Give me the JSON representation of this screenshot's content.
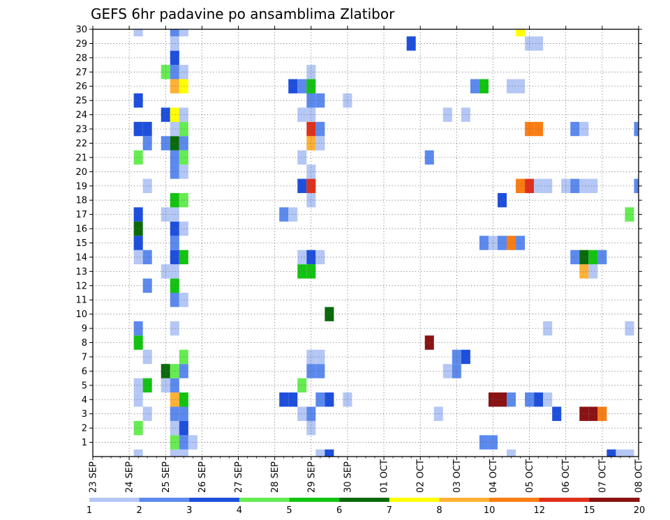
{
  "chart_data": {
    "type": "heatmap",
    "title": "GEFS 6hr padavine po ansamblima Zlatibor",
    "xlabel": "",
    "ylabel": "",
    "x_ticks": [
      "23 SEP",
      "24 SEP",
      "25 SEP",
      "26 SEP",
      "27 SEP",
      "28 SEP",
      "29 SEP",
      "30 SEP",
      "01 OCT",
      "02 OCT",
      "03 OCT",
      "04 OCT",
      "05 OCT",
      "06 OCT",
      "07 OCT",
      "08 OCT"
    ],
    "x_range_days": [
      0,
      15
    ],
    "y_ticks": [
      1,
      2,
      3,
      4,
      5,
      6,
      7,
      8,
      9,
      10,
      11,
      12,
      13,
      14,
      15,
      16,
      17,
      18,
      19,
      20,
      21,
      22,
      23,
      24,
      25,
      26,
      27,
      28,
      29,
      30
    ],
    "y_range": [
      0,
      30
    ],
    "grid": true,
    "colorbar": {
      "placement": "bottom",
      "labels": [
        "1",
        "2",
        "3",
        "4",
        "5",
        "6",
        "7",
        "8",
        "10",
        "12",
        "15",
        "20"
      ],
      "colors": [
        "#b4c7f5",
        "#5b89ed",
        "#1e4fdc",
        "#66ec52",
        "#13c312",
        "#0a6a0a",
        "#ffff00",
        "#ffb136",
        "#fa7d14",
        "#e0301c",
        "#8a1212"
      ]
    },
    "cells": [
      {
        "t": 1.25,
        "m": 0,
        "v": 1
      },
      {
        "t": 2.25,
        "m": 0,
        "v": 1
      },
      {
        "t": 2.5,
        "m": 0,
        "v": 1
      },
      {
        "t": 6.25,
        "m": 0,
        "v": 1
      },
      {
        "t": 6.5,
        "m": 0,
        "v": 3
      },
      {
        "t": 11.5,
        "m": 0,
        "v": 1
      },
      {
        "t": 14.25,
        "m": 0,
        "v": 3
      },
      {
        "t": 14.5,
        "m": 0,
        "v": 1
      },
      {
        "t": 14.75,
        "m": 0,
        "v": 1
      },
      {
        "t": 2.25,
        "m": 1,
        "v": 4
      },
      {
        "t": 2.5,
        "m": 1,
        "v": 2
      },
      {
        "t": 2.75,
        "m": 1,
        "v": 1
      },
      {
        "t": 10.75,
        "m": 1,
        "v": 2
      },
      {
        "t": 11.0,
        "m": 1,
        "v": 2
      },
      {
        "t": 1.25,
        "m": 2,
        "v": 4
      },
      {
        "t": 2.25,
        "m": 2,
        "v": 1
      },
      {
        "t": 2.5,
        "m": 2,
        "v": 3
      },
      {
        "t": 6.0,
        "m": 2,
        "v": 1
      },
      {
        "t": 1.5,
        "m": 3,
        "v": 1
      },
      {
        "t": 2.25,
        "m": 3,
        "v": 2
      },
      {
        "t": 2.5,
        "m": 3,
        "v": 2
      },
      {
        "t": 5.75,
        "m": 3,
        "v": 1
      },
      {
        "t": 6.0,
        "m": 3,
        "v": 2
      },
      {
        "t": 9.5,
        "m": 3,
        "v": 1
      },
      {
        "t": 12.75,
        "m": 3,
        "v": 3
      },
      {
        "t": 13.5,
        "m": 3,
        "v": 11
      },
      {
        "t": 13.75,
        "m": 3,
        "v": 11
      },
      {
        "t": 14.0,
        "m": 3,
        "v": 9
      },
      {
        "t": 1.25,
        "m": 4,
        "v": 1
      },
      {
        "t": 2.25,
        "m": 4,
        "v": 8
      },
      {
        "t": 2.5,
        "m": 4,
        "v": 5
      },
      {
        "t": 5.25,
        "m": 4,
        "v": 3
      },
      {
        "t": 5.5,
        "m": 4,
        "v": 3
      },
      {
        "t": 6.25,
        "m": 4,
        "v": 2
      },
      {
        "t": 6.5,
        "m": 4,
        "v": 3
      },
      {
        "t": 7.0,
        "m": 4,
        "v": 1
      },
      {
        "t": 11.0,
        "m": 4,
        "v": 11
      },
      {
        "t": 11.25,
        "m": 4,
        "v": 11
      },
      {
        "t": 11.5,
        "m": 4,
        "v": 2
      },
      {
        "t": 12.0,
        "m": 4,
        "v": 2
      },
      {
        "t": 12.25,
        "m": 4,
        "v": 3
      },
      {
        "t": 12.5,
        "m": 4,
        "v": 1
      },
      {
        "t": 1.25,
        "m": 5,
        "v": 1
      },
      {
        "t": 1.5,
        "m": 5,
        "v": 5
      },
      {
        "t": 2.0,
        "m": 5,
        "v": 1
      },
      {
        "t": 2.25,
        "m": 5,
        "v": 2
      },
      {
        "t": 5.75,
        "m": 5,
        "v": 4
      },
      {
        "t": 2.0,
        "m": 6,
        "v": 6
      },
      {
        "t": 2.25,
        "m": 6,
        "v": 4
      },
      {
        "t": 2.5,
        "m": 6,
        "v": 2
      },
      {
        "t": 6.0,
        "m": 6,
        "v": 2
      },
      {
        "t": 6.25,
        "m": 6,
        "v": 2
      },
      {
        "t": 9.75,
        "m": 6,
        "v": 1
      },
      {
        "t": 10.0,
        "m": 6,
        "v": 2
      },
      {
        "t": 1.5,
        "m": 7,
        "v": 1
      },
      {
        "t": 2.5,
        "m": 7,
        "v": 4
      },
      {
        "t": 6.0,
        "m": 7,
        "v": 1
      },
      {
        "t": 6.25,
        "m": 7,
        "v": 1
      },
      {
        "t": 10.0,
        "m": 7,
        "v": 2
      },
      {
        "t": 10.25,
        "m": 7,
        "v": 3
      },
      {
        "t": 1.25,
        "m": 8,
        "v": 5
      },
      {
        "t": 9.25,
        "m": 8,
        "v": 11
      },
      {
        "t": 1.25,
        "m": 9,
        "v": 2
      },
      {
        "t": 2.25,
        "m": 9,
        "v": 1
      },
      {
        "t": 12.5,
        "m": 9,
        "v": 1
      },
      {
        "t": 14.75,
        "m": 9,
        "v": 1
      },
      {
        "t": 6.5,
        "m": 10,
        "v": 6
      },
      {
        "t": 2.25,
        "m": 11,
        "v": 2
      },
      {
        "t": 2.5,
        "m": 11,
        "v": 1
      },
      {
        "t": 1.5,
        "m": 12,
        "v": 2
      },
      {
        "t": 2.25,
        "m": 12,
        "v": 5
      },
      {
        "t": 2.0,
        "m": 13,
        "v": 1
      },
      {
        "t": 2.25,
        "m": 13,
        "v": 1
      },
      {
        "t": 5.75,
        "m": 13,
        "v": 5
      },
      {
        "t": 6.0,
        "m": 13,
        "v": 5
      },
      {
        "t": 13.5,
        "m": 13,
        "v": 8
      },
      {
        "t": 13.75,
        "m": 13,
        "v": 1
      },
      {
        "t": 1.25,
        "m": 14,
        "v": 1
      },
      {
        "t": 1.5,
        "m": 14,
        "v": 2
      },
      {
        "t": 2.25,
        "m": 14,
        "v": 3
      },
      {
        "t": 2.5,
        "m": 14,
        "v": 5
      },
      {
        "t": 5.75,
        "m": 14,
        "v": 1
      },
      {
        "t": 6.0,
        "m": 14,
        "v": 3
      },
      {
        "t": 6.25,
        "m": 14,
        "v": 1
      },
      {
        "t": 13.25,
        "m": 14,
        "v": 2
      },
      {
        "t": 13.5,
        "m": 14,
        "v": 6
      },
      {
        "t": 13.75,
        "m": 14,
        "v": 5
      },
      {
        "t": 14.0,
        "m": 14,
        "v": 2
      },
      {
        "t": 1.25,
        "m": 15,
        "v": 3
      },
      {
        "t": 2.25,
        "m": 15,
        "v": 2
      },
      {
        "t": 10.75,
        "m": 15,
        "v": 2
      },
      {
        "t": 11.0,
        "m": 15,
        "v": 1
      },
      {
        "t": 11.25,
        "m": 15,
        "v": 2
      },
      {
        "t": 11.5,
        "m": 15,
        "v": 9
      },
      {
        "t": 11.75,
        "m": 15,
        "v": 2
      },
      {
        "t": 1.25,
        "m": 16,
        "v": 6
      },
      {
        "t": 2.25,
        "m": 16,
        "v": 3
      },
      {
        "t": 2.5,
        "m": 16,
        "v": 1
      },
      {
        "t": 1.25,
        "m": 17,
        "v": 3
      },
      {
        "t": 2.0,
        "m": 17,
        "v": 1
      },
      {
        "t": 2.25,
        "m": 17,
        "v": 1
      },
      {
        "t": 5.25,
        "m": 17,
        "v": 2
      },
      {
        "t": 5.5,
        "m": 17,
        "v": 1
      },
      {
        "t": 14.75,
        "m": 17,
        "v": 4
      },
      {
        "t": 2.25,
        "m": 18,
        "v": 5
      },
      {
        "t": 2.5,
        "m": 18,
        "v": 4
      },
      {
        "t": 6.0,
        "m": 18,
        "v": 1
      },
      {
        "t": 11.25,
        "m": 18,
        "v": 3
      },
      {
        "t": 1.5,
        "m": 19,
        "v": 1
      },
      {
        "t": 5.75,
        "m": 19,
        "v": 3
      },
      {
        "t": 6.0,
        "m": 19,
        "v": 10
      },
      {
        "t": 11.75,
        "m": 19,
        "v": 9
      },
      {
        "t": 12.0,
        "m": 19,
        "v": 10
      },
      {
        "t": 12.25,
        "m": 19,
        "v": 1
      },
      {
        "t": 12.5,
        "m": 19,
        "v": 1
      },
      {
        "t": 13.0,
        "m": 19,
        "v": 1
      },
      {
        "t": 13.25,
        "m": 19,
        "v": 2
      },
      {
        "t": 13.5,
        "m": 19,
        "v": 1
      },
      {
        "t": 13.75,
        "m": 19,
        "v": 1
      },
      {
        "t": 15.0,
        "m": 19,
        "v": 2
      },
      {
        "t": 2.25,
        "m": 20,
        "v": 2
      },
      {
        "t": 2.5,
        "m": 20,
        "v": 1
      },
      {
        "t": 6.0,
        "m": 20,
        "v": 1
      },
      {
        "t": 1.25,
        "m": 21,
        "v": 4
      },
      {
        "t": 2.25,
        "m": 21,
        "v": 2
      },
      {
        "t": 2.5,
        "m": 21,
        "v": 4
      },
      {
        "t": 5.75,
        "m": 21,
        "v": 1
      },
      {
        "t": 9.25,
        "m": 21,
        "v": 2
      },
      {
        "t": 1.5,
        "m": 22,
        "v": 2
      },
      {
        "t": 2.0,
        "m": 22,
        "v": 2
      },
      {
        "t": 2.25,
        "m": 22,
        "v": 6
      },
      {
        "t": 2.5,
        "m": 22,
        "v": 2
      },
      {
        "t": 6.0,
        "m": 22,
        "v": 8
      },
      {
        "t": 6.25,
        "m": 22,
        "v": 1
      },
      {
        "t": 1.25,
        "m": 23,
        "v": 3
      },
      {
        "t": 1.5,
        "m": 23,
        "v": 3
      },
      {
        "t": 2.25,
        "m": 23,
        "v": 1
      },
      {
        "t": 2.5,
        "m": 23,
        "v": 4
      },
      {
        "t": 6.0,
        "m": 23,
        "v": 10
      },
      {
        "t": 6.25,
        "m": 23,
        "v": 2
      },
      {
        "t": 12.0,
        "m": 23,
        "v": 9
      },
      {
        "t": 12.25,
        "m": 23,
        "v": 9
      },
      {
        "t": 13.25,
        "m": 23,
        "v": 2
      },
      {
        "t": 13.5,
        "m": 23,
        "v": 1
      },
      {
        "t": 15.0,
        "m": 23,
        "v": 2
      },
      {
        "t": 2.0,
        "m": 24,
        "v": 3
      },
      {
        "t": 2.25,
        "m": 24,
        "v": 7
      },
      {
        "t": 2.5,
        "m": 24,
        "v": 1
      },
      {
        "t": 5.75,
        "m": 24,
        "v": 1
      },
      {
        "t": 6.0,
        "m": 24,
        "v": 1
      },
      {
        "t": 9.75,
        "m": 24,
        "v": 1
      },
      {
        "t": 10.25,
        "m": 24,
        "v": 1
      },
      {
        "t": 1.25,
        "m": 25,
        "v": 3
      },
      {
        "t": 6.0,
        "m": 25,
        "v": 2
      },
      {
        "t": 6.25,
        "m": 25,
        "v": 2
      },
      {
        "t": 7.0,
        "m": 25,
        "v": 1
      },
      {
        "t": 2.25,
        "m": 26,
        "v": 8
      },
      {
        "t": 2.5,
        "m": 26,
        "v": 7
      },
      {
        "t": 5.5,
        "m": 26,
        "v": 3
      },
      {
        "t": 5.75,
        "m": 26,
        "v": 2
      },
      {
        "t": 6.0,
        "m": 26,
        "v": 5
      },
      {
        "t": 10.5,
        "m": 26,
        "v": 2
      },
      {
        "t": 10.75,
        "m": 26,
        "v": 5
      },
      {
        "t": 11.5,
        "m": 26,
        "v": 1
      },
      {
        "t": 11.75,
        "m": 26,
        "v": 1
      },
      {
        "t": 2.0,
        "m": 27,
        "v": 4
      },
      {
        "t": 2.25,
        "m": 27,
        "v": 2
      },
      {
        "t": 2.5,
        "m": 27,
        "v": 1
      },
      {
        "t": 6.0,
        "m": 27,
        "v": 1
      },
      {
        "t": 2.25,
        "m": 28,
        "v": 3
      },
      {
        "t": 2.25,
        "m": 29,
        "v": 1
      },
      {
        "t": 8.75,
        "m": 29,
        "v": 3
      },
      {
        "t": 12.0,
        "m": 29,
        "v": 1
      },
      {
        "t": 12.25,
        "m": 29,
        "v": 1
      },
      {
        "t": 1.25,
        "m": 30,
        "v": 1
      },
      {
        "t": 2.25,
        "m": 30,
        "v": 2
      },
      {
        "t": 2.5,
        "m": 30,
        "v": 1
      },
      {
        "t": 11.75,
        "m": 30,
        "v": 7
      }
    ]
  }
}
